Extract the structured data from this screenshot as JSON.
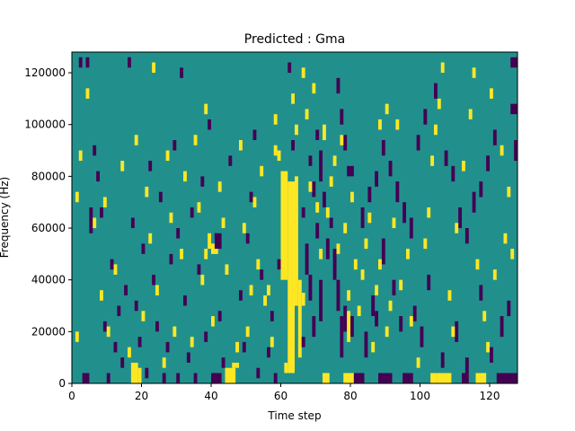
{
  "chart_data": {
    "type": "heatmap",
    "title": "Predicted : Gma",
    "xlabel": "Time step",
    "ylabel": "Frequency (Hz)",
    "xlim": [
      0,
      128
    ],
    "ylim": [
      0,
      128000
    ],
    "xticks": [
      0,
      20,
      40,
      60,
      80,
      100,
      120
    ],
    "yticks": [
      0,
      20000,
      40000,
      60000,
      80000,
      100000,
      120000
    ],
    "ytick_labels": [
      "0",
      "20000",
      "40000",
      "60000",
      "80000",
      "100000",
      "120000"
    ],
    "colors": {
      "background": "#21908d",
      "low": "#440154",
      "high": "#fde725"
    },
    "value_classes": {
      "background": 0,
      "low": -1,
      "high": 1
    },
    "cells": [
      [
        60,
        62,
        40,
        82,
        1
      ],
      [
        62,
        64,
        4,
        78,
        1
      ],
      [
        64,
        65,
        30,
        80,
        1
      ],
      [
        65,
        66,
        10,
        40,
        1
      ],
      [
        66,
        67,
        30,
        35,
        1
      ],
      [
        61,
        62,
        4,
        8,
        1
      ],
      [
        17,
        19,
        0,
        8,
        1
      ],
      [
        19,
        20,
        0,
        6,
        1
      ],
      [
        44,
        47,
        0,
        6,
        1
      ],
      [
        46,
        47,
        6,
        8,
        1
      ],
      [
        47,
        48,
        6,
        8,
        1
      ],
      [
        72,
        74,
        0,
        4,
        1
      ],
      [
        78,
        80,
        0,
        4,
        1
      ],
      [
        80,
        81,
        0,
        4,
        1
      ],
      [
        105,
        109,
        0,
        4,
        1
      ],
      [
        116,
        119,
        0,
        4,
        1
      ],
      [
        3,
        5,
        0,
        4,
        -1
      ],
      [
        10,
        11,
        0,
        4,
        -1
      ],
      [
        26,
        27,
        0,
        4,
        -1
      ],
      [
        30,
        31,
        0,
        4,
        -1
      ],
      [
        35,
        36,
        0,
        4,
        -1
      ],
      [
        40,
        43,
        0,
        4,
        -1
      ],
      [
        58,
        59,
        0,
        4,
        -1
      ],
      [
        81,
        84,
        0,
        4,
        -1
      ],
      [
        88,
        92,
        0,
        4,
        -1
      ],
      [
        95,
        96,
        0,
        4,
        -1
      ],
      [
        96,
        98,
        0,
        4,
        -1
      ],
      [
        112,
        114,
        0,
        4,
        -1
      ],
      [
        122,
        128,
        0,
        4,
        -1
      ],
      [
        103,
        105,
        0,
        4,
        1
      ],
      [
        1,
        2,
        16,
        20,
        1
      ],
      [
        2,
        3,
        122,
        126,
        -1
      ],
      [
        4,
        5,
        122,
        126,
        -1
      ],
      [
        126,
        128,
        122,
        126,
        -1
      ],
      [
        126,
        128,
        104,
        108,
        -1
      ],
      [
        127,
        128,
        86,
        94,
        -1
      ],
      [
        58,
        59,
        88,
        92,
        1
      ],
      [
        59,
        60,
        86,
        90,
        1
      ],
      [
        72,
        73,
        94,
        100,
        1
      ],
      [
        79,
        81,
        80,
        84,
        -1
      ],
      [
        90,
        91,
        104,
        108,
        1
      ],
      [
        88,
        89,
        98,
        102,
        1
      ],
      [
        93,
        94,
        98,
        102,
        1
      ],
      [
        39,
        40,
        52,
        58,
        1
      ],
      [
        38,
        39,
        48,
        52,
        1
      ],
      [
        40,
        42,
        50,
        54,
        1
      ],
      [
        41,
        42,
        56,
        58,
        -1
      ],
      [
        41,
        43,
        52,
        58,
        -1
      ],
      [
        55,
        56,
        30,
        34,
        1
      ],
      [
        56,
        57,
        34,
        38,
        1
      ],
      [
        67,
        68,
        42,
        54,
        -1
      ],
      [
        68,
        69,
        32,
        42,
        -1
      ],
      [
        69,
        70,
        18,
        26,
        -1
      ],
      [
        71,
        72,
        24,
        40,
        -1
      ],
      [
        73,
        74,
        48,
        56,
        -1
      ],
      [
        75,
        76,
        40,
        52,
        -1
      ],
      [
        76,
        77,
        28,
        40,
        -1
      ],
      [
        77,
        78,
        10,
        26,
        -1
      ],
      [
        78,
        79,
        20,
        30,
        -1
      ],
      [
        79,
        80,
        16,
        28,
        1
      ],
      [
        80,
        81,
        18,
        26,
        -1
      ],
      [
        84,
        85,
        10,
        20,
        -1
      ],
      [
        86,
        87,
        26,
        34,
        -1
      ],
      [
        87,
        88,
        22,
        28,
        -1
      ],
      [
        89,
        90,
        46,
        56,
        -1
      ],
      [
        92,
        93,
        34,
        40,
        -1
      ],
      [
        94,
        95,
        20,
        26,
        -1
      ],
      [
        98,
        99,
        24,
        30,
        -1
      ],
      [
        100,
        101,
        14,
        22,
        -1
      ],
      [
        102,
        103,
        36,
        42,
        -1
      ],
      [
        106,
        107,
        6,
        12,
        -1
      ],
      [
        110,
        111,
        16,
        24,
        -1
      ],
      [
        113,
        114,
        4,
        10,
        -1
      ],
      [
        117,
        118,
        32,
        38,
        -1
      ],
      [
        120,
        121,
        8,
        14,
        -1
      ],
      [
        123,
        124,
        18,
        26,
        -1
      ],
      [
        125,
        126,
        26,
        32,
        -1
      ],
      [
        83,
        84,
        60,
        68,
        -1
      ],
      [
        85,
        86,
        70,
        76,
        -1
      ],
      [
        87,
        88,
        76,
        82,
        -1
      ],
      [
        89,
        90,
        88,
        94,
        -1
      ],
      [
        91,
        92,
        80,
        86,
        -1
      ],
      [
        93,
        94,
        70,
        78,
        -1
      ],
      [
        95,
        96,
        62,
        70,
        -1
      ],
      [
        97,
        98,
        56,
        64,
        -1
      ],
      [
        99,
        100,
        90,
        96,
        -1
      ],
      [
        101,
        102,
        100,
        106,
        -1
      ],
      [
        104,
        105,
        110,
        116,
        -1
      ],
      [
        107,
        108,
        84,
        90,
        -1
      ],
      [
        109,
        110,
        78,
        84,
        -1
      ],
      [
        111,
        112,
        60,
        68,
        -1
      ],
      [
        113,
        114,
        54,
        60,
        -1
      ],
      [
        115,
        116,
        66,
        74,
        -1
      ],
      [
        117,
        118,
        72,
        78,
        -1
      ],
      [
        119,
        120,
        82,
        88,
        -1
      ],
      [
        121,
        122,
        92,
        98,
        -1
      ],
      [
        70,
        71,
        94,
        98,
        -1
      ],
      [
        71,
        72,
        78,
        90,
        -1
      ],
      [
        72,
        73,
        68,
        74,
        -1
      ],
      [
        74,
        75,
        60,
        64,
        -1
      ],
      [
        76,
        77,
        112,
        118,
        -1
      ],
      [
        77,
        78,
        100,
        106,
        -1
      ],
      [
        78,
        79,
        90,
        96,
        -1
      ],
      [
        68,
        69,
        84,
        88,
        -1
      ],
      [
        69,
        70,
        72,
        78,
        -1
      ],
      [
        70,
        71,
        56,
        62,
        -1
      ],
      [
        73,
        74,
        64,
        68,
        1
      ],
      [
        74,
        75,
        76,
        80,
        1
      ],
      [
        75,
        76,
        84,
        88,
        1
      ],
      [
        76,
        77,
        50,
        54,
        1
      ],
      [
        77,
        78,
        92,
        96,
        1
      ],
      [
        78,
        79,
        58,
        62,
        1
      ],
      [
        79,
        80,
        32,
        36,
        1
      ],
      [
        80,
        81,
        70,
        74,
        1
      ],
      [
        81,
        82,
        44,
        48,
        1
      ],
      [
        82,
        83,
        26,
        30,
        1
      ],
      [
        83,
        84,
        40,
        44,
        1
      ],
      [
        84,
        85,
        52,
        56,
        1
      ],
      [
        85,
        86,
        62,
        66,
        1
      ],
      [
        86,
        87,
        12,
        16,
        1
      ],
      [
        87,
        88,
        34,
        38,
        1
      ],
      [
        88,
        89,
        44,
        48,
        1
      ],
      [
        90,
        91,
        18,
        22,
        1
      ],
      [
        91,
        92,
        28,
        32,
        1
      ],
      [
        92,
        93,
        60,
        64,
        1
      ],
      [
        94,
        95,
        36,
        40,
        1
      ],
      [
        96,
        97,
        48,
        52,
        1
      ],
      [
        97,
        98,
        22,
        26,
        1
      ],
      [
        99,
        100,
        6,
        10,
        1
      ],
      [
        101,
        102,
        52,
        56,
        1
      ],
      [
        102,
        103,
        64,
        68,
        1
      ],
      [
        103,
        104,
        84,
        88,
        1
      ],
      [
        104,
        105,
        96,
        100,
        1
      ],
      [
        105,
        106,
        106,
        110,
        1
      ],
      [
        106,
        107,
        120,
        124,
        1
      ],
      [
        108,
        109,
        32,
        36,
        1
      ],
      [
        109,
        110,
        18,
        22,
        1
      ],
      [
        110,
        111,
        58,
        62,
        1
      ],
      [
        112,
        113,
        82,
        86,
        1
      ],
      [
        114,
        115,
        102,
        106,
        1
      ],
      [
        116,
        117,
        44,
        48,
        1
      ],
      [
        118,
        119,
        24,
        28,
        1
      ],
      [
        119,
        120,
        12,
        16,
        1
      ],
      [
        121,
        122,
        40,
        44,
        1
      ],
      [
        124,
        125,
        54,
        58,
        1
      ],
      [
        126,
        127,
        48,
        52,
        1
      ],
      [
        125,
        126,
        72,
        76,
        1
      ],
      [
        123,
        124,
        88,
        92,
        1
      ],
      [
        120,
        121,
        110,
        114,
        1
      ],
      [
        115,
        116,
        118,
        122,
        1
      ],
      [
        5,
        6,
        58,
        68,
        -1
      ],
      [
        6,
        7,
        88,
        92,
        -1
      ],
      [
        7,
        8,
        78,
        82,
        -1
      ],
      [
        8,
        9,
        64,
        68,
        -1
      ],
      [
        9,
        10,
        20,
        24,
        -1
      ],
      [
        11,
        12,
        44,
        48,
        -1
      ],
      [
        12,
        13,
        12,
        16,
        -1
      ],
      [
        13,
        14,
        26,
        30,
        -1
      ],
      [
        14,
        15,
        6,
        10,
        -1
      ],
      [
        15,
        16,
        34,
        38,
        -1
      ],
      [
        16,
        17,
        122,
        126,
        -1
      ],
      [
        17,
        18,
        60,
        64,
        -1
      ],
      [
        18,
        19,
        28,
        32,
        -1
      ],
      [
        19,
        20,
        14,
        18,
        -1
      ],
      [
        20,
        21,
        50,
        54,
        -1
      ],
      [
        21,
        22,
        2,
        6,
        -1
      ],
      [
        22,
        23,
        82,
        86,
        -1
      ],
      [
        23,
        24,
        38,
        42,
        -1
      ],
      [
        24,
        25,
        20,
        24,
        -1
      ],
      [
        25,
        26,
        70,
        74,
        -1
      ],
      [
        27,
        28,
        12,
        16,
        -1
      ],
      [
        28,
        29,
        46,
        50,
        -1
      ],
      [
        29,
        30,
        90,
        94,
        -1
      ],
      [
        30,
        31,
        56,
        60,
        -1
      ],
      [
        31,
        32,
        118,
        122,
        -1
      ],
      [
        32,
        33,
        30,
        34,
        -1
      ],
      [
        33,
        34,
        8,
        12,
        -1
      ],
      [
        34,
        35,
        64,
        68,
        -1
      ],
      [
        36,
        37,
        42,
        46,
        -1
      ],
      [
        37,
        38,
        76,
        80,
        -1
      ],
      [
        38,
        39,
        16,
        20,
        -1
      ],
      [
        39,
        40,
        98,
        102,
        -1
      ],
      [
        42,
        43,
        24,
        28,
        -1
      ],
      [
        43,
        44,
        6,
        10,
        -1
      ],
      [
        45,
        46,
        84,
        88,
        -1
      ],
      [
        48,
        49,
        32,
        36,
        -1
      ],
      [
        49,
        50,
        12,
        16,
        -1
      ],
      [
        50,
        51,
        54,
        58,
        -1
      ],
      [
        51,
        52,
        70,
        74,
        -1
      ],
      [
        52,
        53,
        94,
        98,
        -1
      ],
      [
        53,
        54,
        2,
        6,
        -1
      ],
      [
        54,
        55,
        40,
        44,
        -1
      ],
      [
        56,
        57,
        10,
        14,
        -1
      ],
      [
        57,
        58,
        24,
        28,
        -1
      ],
      [
        59,
        60,
        44,
        48,
        -1
      ],
      [
        62,
        63,
        120,
        124,
        -1
      ],
      [
        63,
        64,
        90,
        94,
        -1
      ],
      [
        66,
        67,
        14,
        18,
        -1
      ],
      [
        66,
        67,
        64,
        68,
        -1
      ],
      [
        1,
        2,
        70,
        74,
        1
      ],
      [
        2,
        3,
        86,
        90,
        1
      ],
      [
        4,
        5,
        110,
        114,
        1
      ],
      [
        6,
        7,
        60,
        64,
        1
      ],
      [
        8,
        9,
        32,
        36,
        1
      ],
      [
        9,
        10,
        68,
        72,
        1
      ],
      [
        10,
        11,
        18,
        22,
        1
      ],
      [
        12,
        13,
        42,
        46,
        1
      ],
      [
        14,
        15,
        82,
        86,
        1
      ],
      [
        16,
        17,
        10,
        14,
        1
      ],
      [
        18,
        19,
        92,
        96,
        1
      ],
      [
        20,
        21,
        24,
        28,
        1
      ],
      [
        21,
        22,
        72,
        76,
        1
      ],
      [
        22,
        23,
        54,
        58,
        1
      ],
      [
        23,
        24,
        120,
        124,
        1
      ],
      [
        24,
        25,
        34,
        38,
        1
      ],
      [
        26,
        27,
        6,
        10,
        1
      ],
      [
        27,
        28,
        86,
        90,
        1
      ],
      [
        28,
        29,
        62,
        66,
        1
      ],
      [
        29,
        30,
        18,
        22,
        1
      ],
      [
        31,
        32,
        48,
        52,
        1
      ],
      [
        32,
        33,
        78,
        82,
        1
      ],
      [
        34,
        35,
        14,
        18,
        1
      ],
      [
        35,
        36,
        92,
        96,
        1
      ],
      [
        36,
        37,
        66,
        70,
        1
      ],
      [
        37,
        38,
        38,
        42,
        1
      ],
      [
        38,
        39,
        104,
        108,
        1
      ],
      [
        40,
        41,
        22,
        26,
        1
      ],
      [
        42,
        43,
        74,
        78,
        1
      ],
      [
        43,
        44,
        60,
        64,
        1
      ],
      [
        44,
        45,
        42,
        46,
        1
      ],
      [
        47,
        48,
        12,
        16,
        1
      ],
      [
        48,
        49,
        90,
        94,
        1
      ],
      [
        49,
        50,
        58,
        62,
        1
      ],
      [
        50,
        51,
        18,
        22,
        1
      ],
      [
        51,
        52,
        34,
        38,
        1
      ],
      [
        52,
        53,
        68,
        72,
        1
      ],
      [
        53,
        54,
        44,
        48,
        1
      ],
      [
        54,
        55,
        80,
        84,
        1
      ],
      [
        57,
        58,
        14,
        18,
        1
      ],
      [
        58,
        59,
        100,
        104,
        1
      ],
      [
        63,
        64,
        108,
        112,
        1
      ],
      [
        64,
        65,
        96,
        100,
        1
      ],
      [
        66,
        67,
        118,
        122,
        1
      ],
      [
        67,
        68,
        102,
        106,
        1
      ],
      [
        68,
        69,
        74,
        78,
        1
      ],
      [
        69,
        70,
        112,
        116,
        1
      ],
      [
        70,
        71,
        66,
        70,
        1
      ],
      [
        71,
        72,
        48,
        52,
        1
      ]
    ]
  }
}
